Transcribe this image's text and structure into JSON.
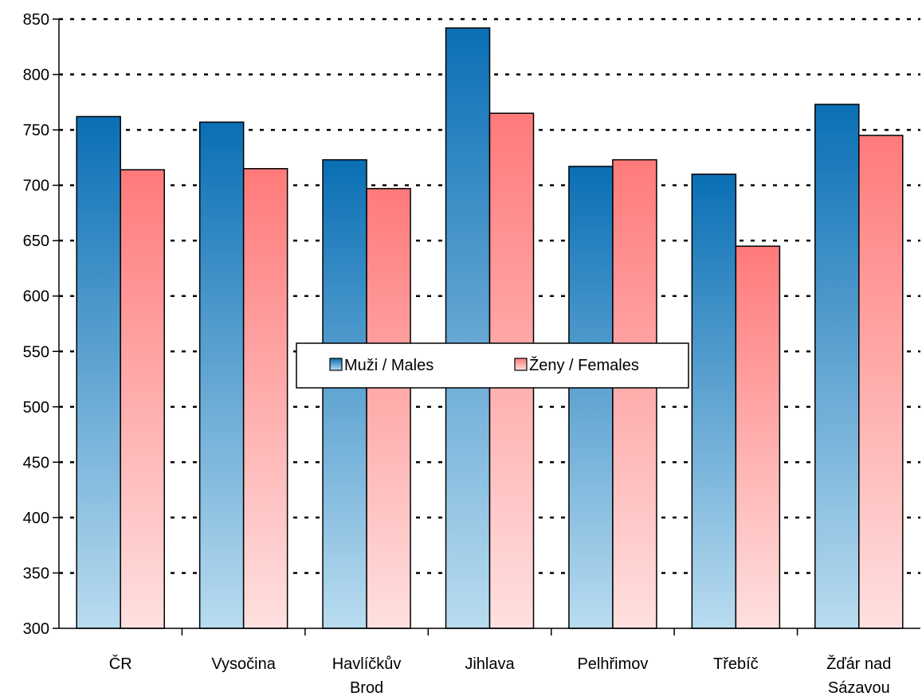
{
  "chart_data": {
    "type": "bar",
    "categories": [
      [
        "ČR"
      ],
      [
        "Vysočina"
      ],
      [
        "Havlíčkův",
        "Brod"
      ],
      [
        "Jihlava"
      ],
      [
        "Pelhřimov"
      ],
      [
        "Třebíč"
      ],
      [
        "Žďár nad",
        "Sázavou"
      ]
    ],
    "series": [
      {
        "name": "Muži / Males",
        "values": [
          762,
          757,
          723,
          842,
          717,
          710,
          773
        ],
        "color_top": "#0a6fb5",
        "color_bottom": "#b9dcf0"
      },
      {
        "name": "Ženy / Females",
        "values": [
          714,
          715,
          697,
          765,
          723,
          645,
          745
        ],
        "color_top": "#ff7a7a",
        "color_bottom": "#ffe0e0"
      }
    ],
    "ylim": [
      300,
      850
    ],
    "yticks": [
      300,
      350,
      400,
      450,
      500,
      550,
      600,
      650,
      700,
      750,
      800,
      850
    ],
    "grid": true,
    "legend_position": "center"
  }
}
